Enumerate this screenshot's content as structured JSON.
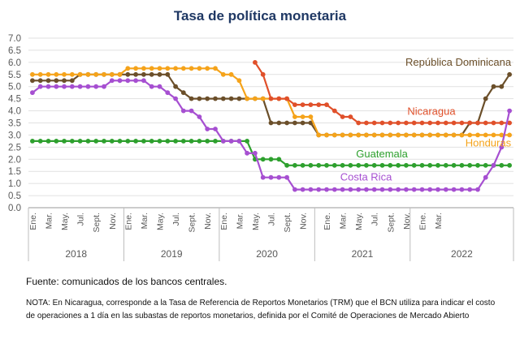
{
  "footer": {
    "source": "Fuente: comunicados de los bancos centrales.",
    "note": "NOTA: En Nicaragua, corresponde a la Tasa de Referencia de Reportos Monetarios (TRM) que el BCN utiliza para indicar el costo de operaciones a 1 día en las subastas de reportos monetarios, definida por el Comité de Operaciones de Mercado Abierto"
  },
  "chart_data": {
    "type": "line",
    "title": "Tasa de política monetaria",
    "xlabel": "",
    "ylabel": "",
    "ylim": [
      0,
      7
    ],
    "yticks": [
      "0.0",
      "0.5",
      "1.0",
      "1.5",
      "2.0",
      "2.5",
      "3.0",
      "3.5",
      "4.0",
      "4.5",
      "5.0",
      "5.5",
      "6.0",
      "6.5",
      "7.0"
    ],
    "x_tick_labels": [
      "Ene.",
      "Mar.",
      "May.",
      "Jul.",
      "Sept.",
      "Nov.",
      "Ene.",
      "Mar.",
      "May.",
      "Jul.",
      "Sept.",
      "Nov.",
      "Ene.",
      "Mar.",
      "May.",
      "Jul.",
      "Sept.",
      "Nov.",
      "Ene.",
      "Mar.",
      "May.",
      "Jul.",
      "Sept.",
      "Nov.",
      "Ene.",
      "Mar."
    ],
    "years": [
      "2018",
      "2019",
      "2020",
      "2021",
      "2022"
    ],
    "grid": true,
    "series": [
      {
        "name": "República Dominicana",
        "color": "#6b4f2a",
        "start_month": 0,
        "values": [
          5.25,
          5.25,
          5.25,
          5.25,
          5.25,
          5.25,
          5.5,
          5.5,
          5.5,
          5.5,
          5.5,
          5.5,
          5.5,
          5.5,
          5.5,
          5.5,
          5.5,
          5.5,
          5.0,
          4.75,
          4.5,
          4.5,
          4.5,
          4.5,
          4.5,
          4.5,
          4.5,
          4.5,
          4.5,
          4.5,
          3.5,
          3.5,
          3.5,
          3.5,
          3.5,
          3.5,
          3.0,
          3.0,
          3.0,
          3.0,
          3.0,
          3.0,
          3.0,
          3.0,
          3.0,
          3.0,
          3.0,
          3.0,
          3.0,
          3.0,
          3.0,
          3.0,
          3.0,
          3.0,
          3.0,
          3.5,
          3.5,
          4.5,
          5.0,
          5.0,
          5.5
        ]
      },
      {
        "name": "Honduras",
        "color": "#f5a31a",
        "start_month": 0,
        "values": [
          5.5,
          5.5,
          5.5,
          5.5,
          5.5,
          5.5,
          5.5,
          5.5,
          5.5,
          5.5,
          5.5,
          5.5,
          5.75,
          5.75,
          5.75,
          5.75,
          5.75,
          5.75,
          5.75,
          5.75,
          5.75,
          5.75,
          5.75,
          5.75,
          5.5,
          5.5,
          5.25,
          4.5,
          4.5,
          4.5,
          4.5,
          4.5,
          4.5,
          3.75,
          3.75,
          3.75,
          3.0,
          3.0,
          3.0,
          3.0,
          3.0,
          3.0,
          3.0,
          3.0,
          3.0,
          3.0,
          3.0,
          3.0,
          3.0,
          3.0,
          3.0,
          3.0,
          3.0,
          3.0,
          3.0,
          3.0,
          3.0,
          3.0,
          3.0,
          3.0,
          3.0
        ]
      },
      {
        "name": "Nicaragua",
        "color": "#e0502a",
        "start_month": 28,
        "values": [
          6.0,
          5.5,
          4.5,
          4.5,
          4.5,
          4.25,
          4.25,
          4.25,
          4.25,
          4.25,
          4.0,
          3.75,
          3.75,
          3.5,
          3.5,
          3.5,
          3.5,
          3.5,
          3.5,
          3.5,
          3.5,
          3.5,
          3.5,
          3.5,
          3.5,
          3.5,
          3.5,
          3.5,
          3.5,
          3.5,
          3.5,
          3.5,
          3.5
        ]
      },
      {
        "name": "Guatemala",
        "color": "#2ea02e",
        "start_month": 0,
        "values": [
          2.75,
          2.75,
          2.75,
          2.75,
          2.75,
          2.75,
          2.75,
          2.75,
          2.75,
          2.75,
          2.75,
          2.75,
          2.75,
          2.75,
          2.75,
          2.75,
          2.75,
          2.75,
          2.75,
          2.75,
          2.75,
          2.75,
          2.75,
          2.75,
          2.75,
          2.75,
          2.75,
          2.75,
          2.0,
          2.0,
          2.0,
          2.0,
          1.75,
          1.75,
          1.75,
          1.75,
          1.75,
          1.75,
          1.75,
          1.75,
          1.75,
          1.75,
          1.75,
          1.75,
          1.75,
          1.75,
          1.75,
          1.75,
          1.75,
          1.75,
          1.75,
          1.75,
          1.75,
          1.75,
          1.75,
          1.75,
          1.75,
          1.75,
          1.75,
          1.75,
          1.75
        ]
      },
      {
        "name": "Costa Rica",
        "color": "#a64fd1",
        "start_month": 0,
        "values": [
          4.75,
          5.0,
          5.0,
          5.0,
          5.0,
          5.0,
          5.0,
          5.0,
          5.0,
          5.0,
          5.25,
          5.25,
          5.25,
          5.25,
          5.25,
          5.0,
          5.0,
          4.75,
          4.5,
          4.0,
          4.0,
          3.75,
          3.25,
          3.25,
          2.75,
          2.75,
          2.75,
          2.25,
          2.25,
          1.25,
          1.25,
          1.25,
          1.25,
          0.75,
          0.75,
          0.75,
          0.75,
          0.75,
          0.75,
          0.75,
          0.75,
          0.75,
          0.75,
          0.75,
          0.75,
          0.75,
          0.75,
          0.75,
          0.75,
          0.75,
          0.75,
          0.75,
          0.75,
          0.75,
          0.75,
          0.75,
          0.75,
          1.25,
          1.75,
          2.5,
          4.0
        ]
      }
    ]
  }
}
